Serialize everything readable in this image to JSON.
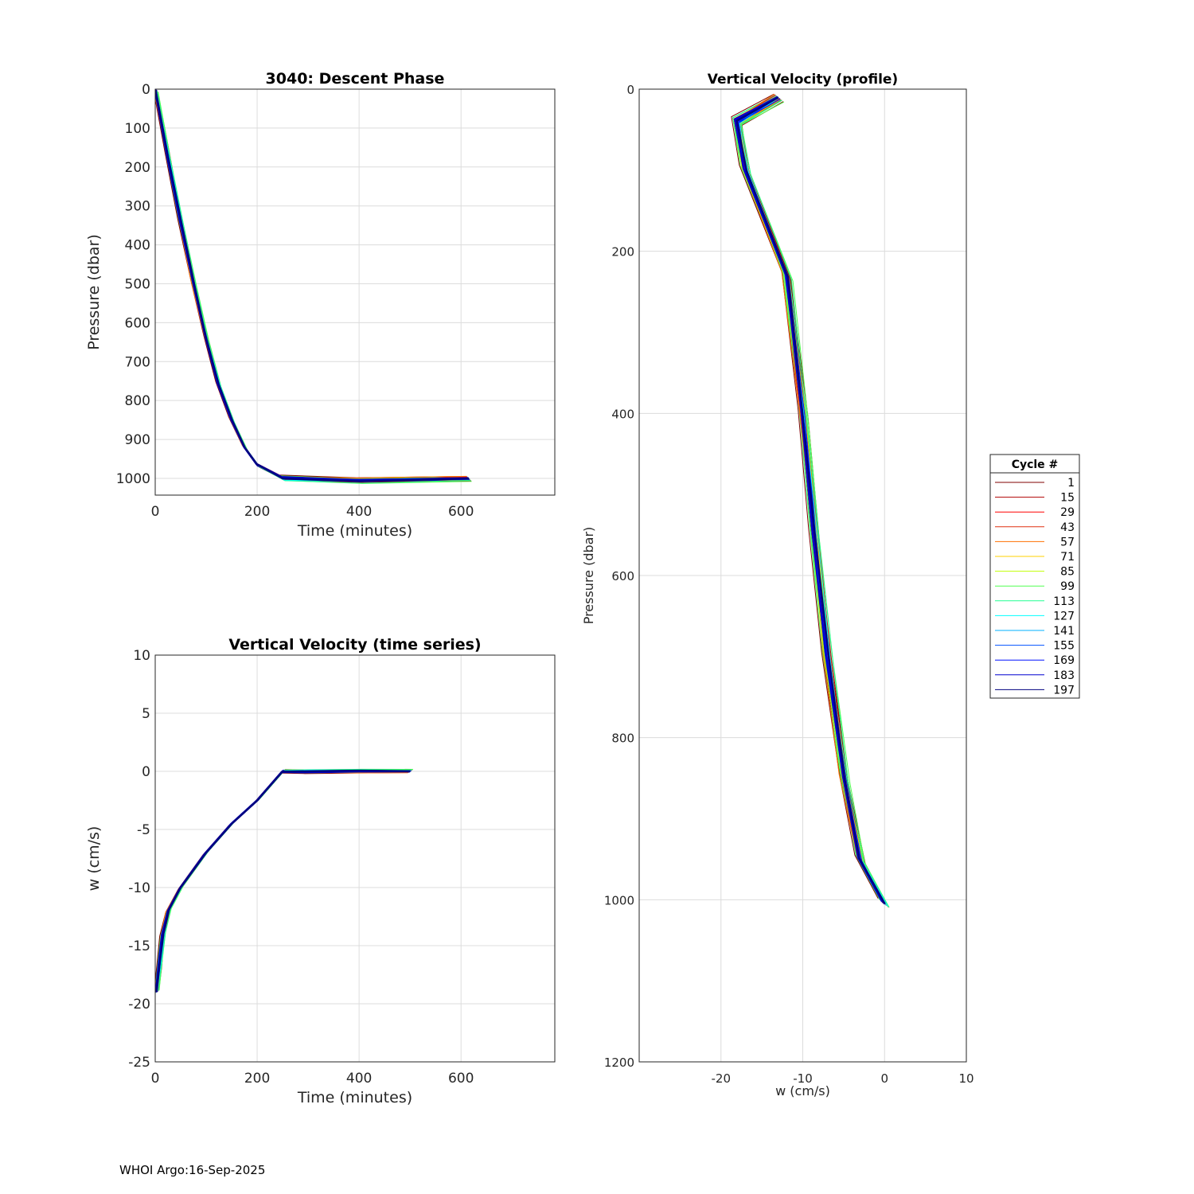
{
  "footer": "WHOI Argo:16-Sep-2025",
  "chart_data": [
    {
      "type": "line",
      "title": "3040: Descent Phase",
      "xlabel": "Time (minutes)",
      "ylabel": "Pressure (dbar)",
      "xlim": [
        0,
        784
      ],
      "ylim": [
        0,
        1043
      ],
      "y_reversed": true,
      "xticks": [
        "0",
        "200",
        "400",
        "600"
      ],
      "xtick_values": [
        0,
        200,
        400,
        600
      ],
      "yticks": [
        "0",
        "100",
        "200",
        "300",
        "400",
        "500",
        "600",
        "700",
        "800",
        "900",
        "1000"
      ],
      "ytick_values": [
        0,
        100,
        200,
        300,
        400,
        500,
        600,
        700,
        800,
        900,
        1000
      ],
      "grid": true,
      "base_x": [
        0,
        25,
        50,
        75,
        100,
        125,
        150,
        175,
        200,
        250,
        400,
        615
      ],
      "base_y": [
        0,
        170,
        340,
        500,
        640,
        760,
        850,
        920,
        965,
        1000,
        1005,
        1000
      ]
    },
    {
      "type": "line",
      "title": "Vertical Velocity (time series)",
      "xlabel": "Time (minutes)",
      "ylabel": "w (cm/s)",
      "xlim": [
        0,
        784
      ],
      "ylim": [
        -25,
        10
      ],
      "xticks": [
        "0",
        "200",
        "400",
        "600"
      ],
      "xtick_values": [
        0,
        200,
        400,
        600
      ],
      "yticks": [
        "10",
        "5",
        "0",
        "-5",
        "-10",
        "-15",
        "-20",
        "-25"
      ],
      "ytick_values": [
        10,
        5,
        0,
        -5,
        -10,
        -15,
        -20,
        -25
      ],
      "grid": true,
      "base_x": [
        2,
        8,
        15,
        25,
        50,
        100,
        150,
        200,
        250,
        300,
        400,
        500
      ],
      "base_y": [
        -19,
        -17,
        -14,
        -12,
        -10,
        -7,
        -4.5,
        -2.5,
        0,
        0,
        0,
        0
      ]
    },
    {
      "type": "line",
      "title": "Vertical Velocity (profile)",
      "xlabel": "w (cm/s)",
      "ylabel": "Pressure (dbar)",
      "xlim": [
        -30,
        10
      ],
      "ylim": [
        0,
        1200
      ],
      "y_reversed": true,
      "xticks": [
        "-20",
        "-10",
        "0",
        "10"
      ],
      "xtick_values": [
        -20,
        -10,
        0,
        10
      ],
      "yticks": [
        "0",
        "200",
        "400",
        "600",
        "800",
        "1000",
        "1200"
      ],
      "ytick_values": [
        0,
        200,
        400,
        600,
        800,
        1000,
        1200
      ],
      "grid": true,
      "base_x": [
        -13,
        -18,
        -17,
        -12,
        -10,
        -8.5,
        -7,
        -5,
        -3,
        0
      ],
      "base_y": [
        10,
        40,
        100,
        230,
        400,
        550,
        700,
        850,
        950,
        1005
      ]
    }
  ],
  "legend": {
    "title": "Cycle #",
    "placement": "right",
    "entries": [
      {
        "label": "1",
        "color": "#800000",
        "offset": -0.03
      },
      {
        "label": "15",
        "color": "#b00000",
        "offset": 0.02
      },
      {
        "label": "29",
        "color": "#ff0000",
        "offset": -0.01
      },
      {
        "label": "43",
        "color": "#e03010",
        "offset": 0.015
      },
      {
        "label": "57",
        "color": "#ff7000",
        "offset": -0.02
      },
      {
        "label": "71",
        "color": "#ffd000",
        "offset": 0.01
      },
      {
        "label": "85",
        "color": "#c0ff00",
        "offset": -0.015
      },
      {
        "label": "99",
        "color": "#50ff50",
        "offset": 0.03
      },
      {
        "label": "113",
        "color": "#20ff90",
        "offset": 0.025
      },
      {
        "label": "127",
        "color": "#00ffff",
        "offset": 0.012
      },
      {
        "label": "141",
        "color": "#00b0ff",
        "offset": 0.0
      },
      {
        "label": "155",
        "color": "#0050ff",
        "offset": -0.005
      },
      {
        "label": "169",
        "color": "#0010ff",
        "offset": 0.005
      },
      {
        "label": "183",
        "color": "#0000d0",
        "offset": -0.008
      },
      {
        "label": "197",
        "color": "#000080",
        "offset": 0.003
      }
    ]
  }
}
